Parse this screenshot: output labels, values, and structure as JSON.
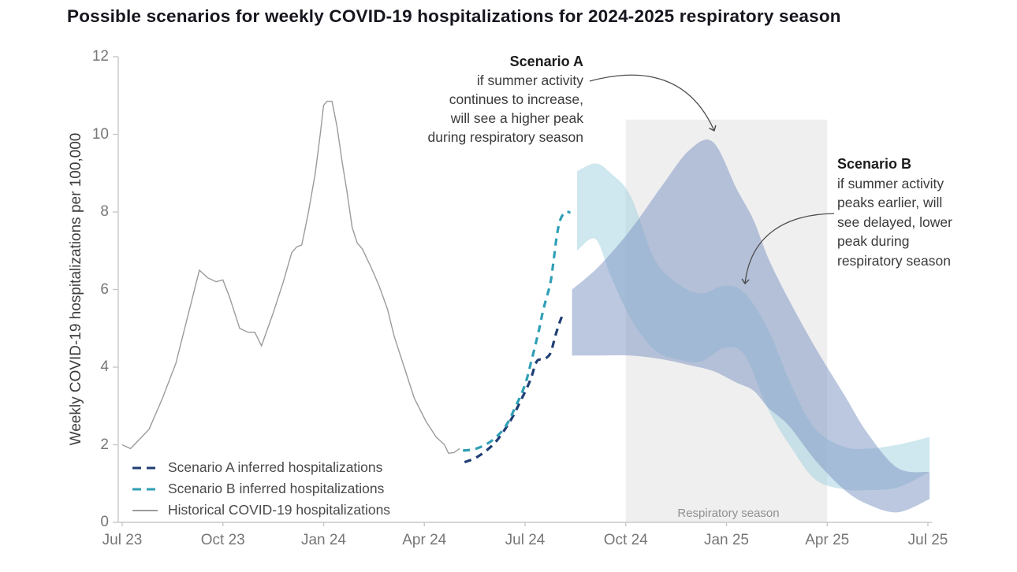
{
  "title": "Possible scenarios for weekly COVID-19 hospitalizations for 2024-2025 respiratory season",
  "y_axis": {
    "label": "Weekly COVID-19 hospitalizations per 100,000",
    "ticks": [
      "0",
      "2",
      "4",
      "6",
      "8",
      "10",
      "12"
    ],
    "min": 0,
    "max": 12
  },
  "x_axis": {
    "ticks": [
      "Jul 23",
      "Oct 23",
      "Jan 24",
      "Apr 24",
      "Jul 24",
      "Oct 24",
      "Jan 25",
      "Apr 25",
      "Jul 25"
    ]
  },
  "region": {
    "label": "Respiratory season",
    "start_tick": 5,
    "end_tick": 7,
    "top_value": 10.38
  },
  "legend": [
    {
      "label": "Scenario A inferred hospitalizations",
      "color": "#1f3e74",
      "style": "dashed"
    },
    {
      "label": "Scenario B inferred hospitalizations",
      "color": "#2f9fb5",
      "style": "dashed"
    },
    {
      "label": "Historical COVID-19 hospitalizations",
      "color": "#9b9b9b",
      "style": "solid"
    }
  ],
  "annotation_a": {
    "lines": [
      "Scenario A",
      "if summer activity",
      "continues to increase,",
      "will see a higher peak",
      "during respiratory season"
    ]
  },
  "annotation_b": {
    "lines": [
      "Scenario B",
      "if summer activity",
      "peaks earlier, will",
      "see delayed, lower",
      "peak during",
      "respiratory season"
    ]
  },
  "colors": {
    "scenario_a_line": "#1f3e74",
    "scenario_b_line": "#2f9fb5",
    "historical_line": "#9b9b9b",
    "band_a_fill": "#7e96c4",
    "band_a_opacity": 0.52,
    "band_b_fill": "#9fcfdd",
    "band_b_opacity": 0.5,
    "region_fill": "#efefef",
    "axis": "#c8c8c8",
    "tick_text": "#767676",
    "annotation_arrow": "#4d4d4d"
  },
  "chart_data": {
    "type": "line",
    "title": "Possible scenarios for weekly COVID-19 hospitalizations for 2024-2025 respiratory season",
    "xlabel_unit": "months since Jul 2023, ticks quarterly Jul 23 - Jul 25",
    "ylabel": "Weekly COVID-19 hospitalizations per 100,000",
    "ylim": [
      0,
      12
    ],
    "xlim": [
      0,
      24.2
    ],
    "grid": false,
    "shaded_region": {
      "label": "Respiratory season",
      "x_start": 15,
      "x_end": 21
    },
    "series": [
      {
        "name": "Historical COVID-19 hospitalizations",
        "type": "line",
        "points": [
          [
            0,
            2.0
          ],
          [
            0.25,
            1.9
          ],
          [
            0.8,
            2.4
          ],
          [
            1.2,
            3.2
          ],
          [
            1.6,
            4.1
          ],
          [
            1.95,
            5.3
          ],
          [
            2.3,
            6.5
          ],
          [
            2.55,
            6.3
          ],
          [
            2.8,
            6.2
          ],
          [
            3.0,
            6.25
          ],
          [
            3.2,
            5.8
          ],
          [
            3.5,
            5.0
          ],
          [
            3.75,
            4.9
          ],
          [
            3.95,
            4.9
          ],
          [
            4.15,
            4.55
          ],
          [
            4.5,
            5.4
          ],
          [
            4.8,
            6.2
          ],
          [
            5.05,
            6.95
          ],
          [
            5.2,
            7.1
          ],
          [
            5.35,
            7.15
          ],
          [
            5.55,
            8.0
          ],
          [
            5.75,
            9.0
          ],
          [
            5.9,
            10.0
          ],
          [
            6.0,
            10.75
          ],
          [
            6.1,
            10.85
          ],
          [
            6.25,
            10.85
          ],
          [
            6.4,
            10.2
          ],
          [
            6.55,
            9.3
          ],
          [
            6.7,
            8.5
          ],
          [
            6.85,
            7.6
          ],
          [
            7.0,
            7.2
          ],
          [
            7.15,
            7.05
          ],
          [
            7.4,
            6.6
          ],
          [
            7.65,
            6.1
          ],
          [
            7.9,
            5.5
          ],
          [
            8.1,
            4.8
          ],
          [
            8.4,
            4.0
          ],
          [
            8.7,
            3.2
          ],
          [
            9.05,
            2.6
          ],
          [
            9.35,
            2.2
          ],
          [
            9.6,
            2.0
          ],
          [
            9.72,
            1.78
          ],
          [
            9.88,
            1.8
          ],
          [
            10.05,
            1.9
          ]
        ]
      },
      {
        "name": "Scenario A inferred hospitalizations",
        "type": "dashed-line",
        "points": [
          [
            10.2,
            1.55
          ],
          [
            10.6,
            1.7
          ],
          [
            11.1,
            2.05
          ],
          [
            11.55,
            2.6
          ],
          [
            11.85,
            3.1
          ],
          [
            12.15,
            3.65
          ],
          [
            12.35,
            4.15
          ],
          [
            12.55,
            4.2
          ],
          [
            12.75,
            4.35
          ],
          [
            12.9,
            4.8
          ],
          [
            13.05,
            5.2
          ],
          [
            13.15,
            5.4
          ]
        ]
      },
      {
        "name": "Scenario B inferred hospitalizations",
        "type": "dashed-line",
        "points": [
          [
            10.15,
            1.85
          ],
          [
            10.55,
            1.9
          ],
          [
            11.0,
            2.1
          ],
          [
            11.4,
            2.45
          ],
          [
            11.7,
            2.95
          ],
          [
            12.0,
            3.55
          ],
          [
            12.2,
            4.2
          ],
          [
            12.4,
            4.9
          ],
          [
            12.55,
            5.5
          ],
          [
            12.75,
            6.15
          ],
          [
            12.85,
            6.75
          ],
          [
            12.95,
            7.4
          ],
          [
            13.05,
            7.8
          ],
          [
            13.2,
            8.0
          ],
          [
            13.35,
            7.98
          ]
        ]
      },
      {
        "name": "Scenario B uncertainty band",
        "type": "band",
        "points": [
          [
            13.55,
            7.0,
            9.05
          ],
          [
            14.1,
            7.3,
            9.25
          ],
          [
            14.55,
            6.35,
            9.0
          ],
          [
            15.15,
            5.25,
            8.4
          ],
          [
            15.85,
            4.45,
            6.8
          ],
          [
            16.55,
            4.2,
            6.15
          ],
          [
            17.25,
            4.15,
            5.9
          ],
          [
            17.95,
            4.5,
            6.1
          ],
          [
            18.55,
            4.3,
            5.9
          ],
          [
            19.25,
            2.9,
            4.95
          ],
          [
            19.95,
            1.9,
            3.5
          ],
          [
            20.65,
            1.1,
            2.4
          ],
          [
            21.5,
            0.85,
            1.95
          ],
          [
            22.2,
            0.83,
            1.9
          ],
          [
            23.1,
            0.9,
            2.0
          ],
          [
            24.05,
            1.3,
            2.2
          ]
        ]
      },
      {
        "name": "Scenario A uncertainty band",
        "type": "band",
        "points": [
          [
            13.4,
            4.3,
            6.0
          ],
          [
            14.2,
            4.3,
            6.6
          ],
          [
            15.15,
            4.3,
            7.55
          ],
          [
            16.1,
            4.2,
            8.7
          ],
          [
            16.9,
            4.05,
            9.6
          ],
          [
            17.6,
            3.9,
            9.8
          ],
          [
            18.3,
            3.6,
            8.6
          ],
          [
            18.8,
            3.4,
            7.8
          ],
          [
            19.25,
            2.95,
            6.8
          ],
          [
            19.85,
            2.5,
            5.75
          ],
          [
            20.65,
            1.6,
            4.5
          ],
          [
            21.5,
            0.85,
            3.3
          ],
          [
            22.2,
            0.47,
            2.3
          ],
          [
            23.1,
            0.26,
            1.4
          ],
          [
            24.05,
            0.6,
            1.3
          ]
        ]
      }
    ]
  }
}
